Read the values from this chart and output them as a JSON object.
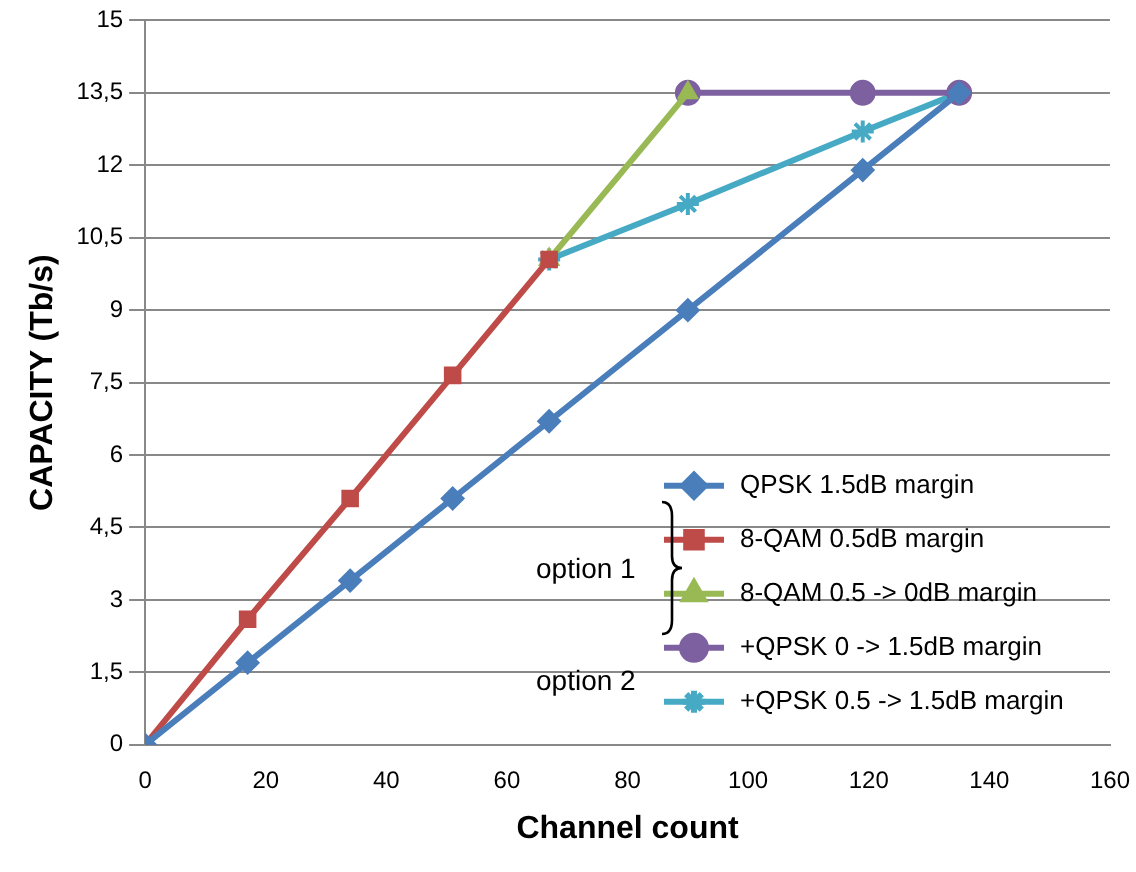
{
  "chart_data": {
    "type": "line",
    "xlabel": "Channel count",
    "ylabel": "CAPACITY (Tb/s)",
    "xlim": [
      0,
      160
    ],
    "xticks": [
      0,
      20,
      40,
      60,
      80,
      100,
      120,
      140,
      160
    ],
    "ylim": [
      0,
      15
    ],
    "yticks": [
      0,
      {
        "value": 1.5,
        "label": "1,5"
      },
      3,
      {
        "value": 4.5,
        "label": "4,5"
      },
      6,
      {
        "value": 7.5,
        "label": "7,5"
      },
      9,
      {
        "value": 10.5,
        "label": "10,5"
      },
      12,
      {
        "value": 13.5,
        "label": "13,5"
      },
      15
    ],
    "grid": "y",
    "legend": "bottom right",
    "line_style": "solid",
    "series": [
      {
        "name": "QPSK 1.5dB margin",
        "color": "#4a7ebb",
        "marker": "diamond",
        "x": [
          0,
          17,
          34,
          51,
          67,
          90,
          119,
          135
        ],
        "values": [
          0,
          1.7,
          3.4,
          5.1,
          6.7,
          9.0,
          11.9,
          13.5
        ]
      },
      {
        "name": "8-QAM 0.5dB margin",
        "color": "#be4b48",
        "marker": "square",
        "x": [
          0,
          17,
          34,
          51,
          67
        ],
        "values": [
          0,
          2.6,
          5.1,
          7.65,
          10.05
        ]
      },
      {
        "name": "8-QAM 0.5 -> 0dB margin",
        "color": "#98b954",
        "marker": "triangle",
        "x": [
          67,
          90
        ],
        "values": [
          10.05,
          13.5
        ]
      },
      {
        "name": "+QPSK 0 -> 1.5dB margin",
        "color": "#7d60a0",
        "marker": "circle",
        "x": [
          90,
          119,
          135
        ],
        "values": [
          13.5,
          13.5,
          13.5
        ]
      },
      {
        "name": "+QPSK 0.5 -> 1.5dB margin",
        "color": "#46aac5",
        "marker": "cross",
        "x": [
          67,
          90,
          119,
          135
        ],
        "values": [
          10.05,
          11.2,
          12.7,
          13.5
        ]
      }
    ],
    "annotations": [
      "option 1",
      "option 2"
    ]
  }
}
